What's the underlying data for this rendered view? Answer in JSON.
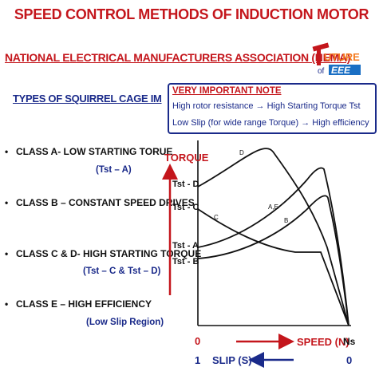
{
  "title": "SPEED CONTROL METHODS OF INDUCTION MOTOR",
  "subtitle": "NATIONAL ELECTRICAL MANUFACTURERS ASSOCIATION (NEMA)",
  "logo": {
    "line1": "UTURE",
    "prefix": "of",
    "line2": "EEE"
  },
  "types_heading": "TYPES OF SQUIRREL CAGE IM",
  "note": {
    "title": "VERY IMPORTANT NOTE",
    "line1": "High rotor resistance → High Starting Torque Tst",
    "line2": "Low Slip (for wide range Torque) → High efficiency"
  },
  "classes": [
    {
      "label": "CLASS A- LOW STARTING TORUE",
      "sub": "(Tst – A)"
    },
    {
      "label": "CLASS B – CONSTANT SPEED DRIVES",
      "sub": ""
    },
    {
      "label": "CLASS C & D- HIGH STARTING TORQUE",
      "sub": "(Tst – C & Tst – D)"
    },
    {
      "label": "CLASS E – HIGH EFFICIENCY",
      "sub": "(Low Slip Region)"
    }
  ],
  "graph": {
    "torque_label": "TORQUE",
    "speed_label": "SPEED (N)",
    "slip_label": "SLIP (S)",
    "ns_label": "Ns",
    "origin_speed": "0",
    "origin_slip": "1",
    "end_slip": "0",
    "tst_labels": [
      "Tst - D",
      "Tst - C",
      "Tst - A",
      "Tst - B"
    ],
    "curve_labels": [
      "D",
      "C",
      "A,E",
      "B"
    ]
  },
  "colors": {
    "red": "#c4161c",
    "blue": "#1a2a8a",
    "orange": "#f47b20"
  }
}
